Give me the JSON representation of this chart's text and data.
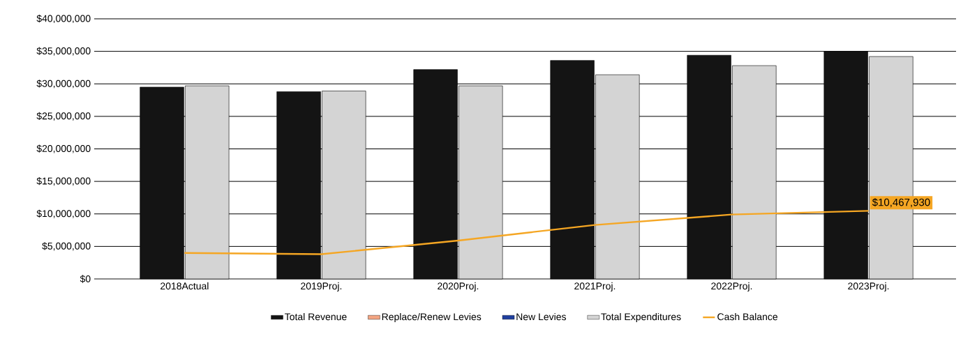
{
  "chart_data": {
    "type": "bar",
    "categories": [
      "2018Actual",
      "2019Proj.",
      "2020Proj.",
      "2021Proj.",
      "2022Proj.",
      "2023Proj."
    ],
    "series": [
      {
        "name": "Total Revenue",
        "color": "#141414",
        "values": [
          29500000,
          28800000,
          32200000,
          33600000,
          34400000,
          35000000
        ]
      },
      {
        "name": "Replace/Renew Levies",
        "color": "#f4a582",
        "values": [
          null,
          null,
          null,
          null,
          null,
          null
        ]
      },
      {
        "name": "New Levies",
        "color": "#1f3f9f",
        "values": [
          null,
          null,
          null,
          null,
          null,
          null
        ]
      },
      {
        "name": "Total Expenditures",
        "color": "#d4d4d4",
        "values": [
          29700000,
          28900000,
          29700000,
          31400000,
          32800000,
          34200000
        ]
      },
      {
        "name": "Cash Balance",
        "type": "line",
        "color": "#f5a623",
        "values": [
          4000000,
          3800000,
          5900000,
          8300000,
          9900000,
          10467930
        ],
        "value_labels": [
          null,
          null,
          null,
          null,
          null,
          "$10,467,930"
        ]
      }
    ],
    "ylim": [
      0,
      40000000
    ],
    "yticks": [
      {
        "value": 0,
        "label": "$0"
      },
      {
        "value": 5000000,
        "label": "$5,000,000"
      },
      {
        "value": 10000000,
        "label": "$10,000,000"
      },
      {
        "value": 15000000,
        "label": "$15,000,000"
      },
      {
        "value": 20000000,
        "label": "$20,000,000"
      },
      {
        "value": 25000000,
        "label": "$25,000,000"
      },
      {
        "value": 30000000,
        "label": "$30,000,000"
      },
      {
        "value": 35000000,
        "label": "$35,000,000"
      },
      {
        "value": 40000000,
        "label": "$40,000,000"
      }
    ],
    "grid": "y",
    "legend": "bottom"
  }
}
